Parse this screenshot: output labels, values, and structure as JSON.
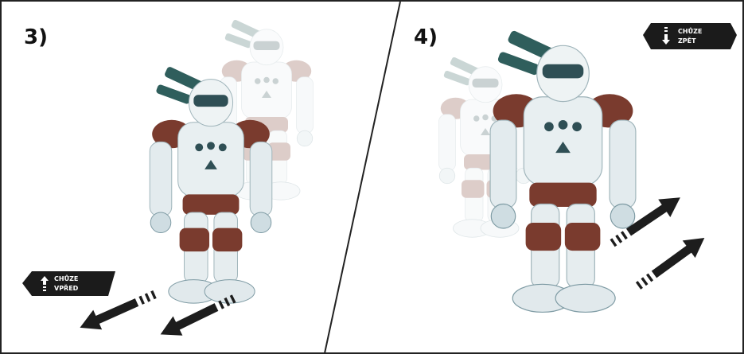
{
  "panels": [
    {
      "label": "3)",
      "badge": [
        "CHŮZE",
        "VPŘED"
      ]
    },
    {
      "label": "4)",
      "badge": [
        "CHŮZE",
        "ZPĚT"
      ]
    }
  ]
}
